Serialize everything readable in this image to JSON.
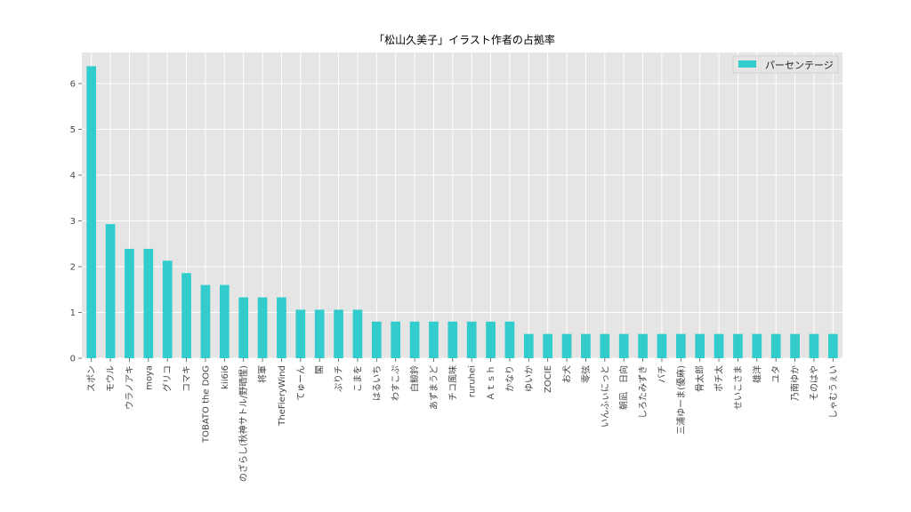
{
  "chart_data": {
    "type": "bar",
    "title": "「松山久美子」イラスト作者の占拠率",
    "xlabel": "",
    "ylabel": "",
    "ylim": [
      0,
      6.68
    ],
    "yticks": [
      0,
      1,
      2,
      3,
      4,
      5,
      6
    ],
    "grid": true,
    "legend_position": "top-right",
    "colors": {
      "bar": "#33cccc",
      "background": "#e5e5e5",
      "grid": "#ffffff"
    },
    "categories": [
      "スポン",
      "モウル",
      "ウラノアキ",
      "moya",
      "グリコ",
      "コマキ",
      "TOBATO the DOG",
      "kii6i6",
      "のざらし(秋神サトル/野晒惺)",
      "将軍",
      "TheFieryWind",
      "てゅーん",
      "閣",
      "ぷりチ",
      "こまを",
      "はるいち",
      "わすこぷ",
      "白鯨鈴",
      "あずまうど",
      "チコ風味",
      "ruruhei",
      "Ａｔｓｈ",
      "かなり",
      "ゆいか",
      "ZOCIE",
      "お犬",
      "零弦",
      "いんふぃにっと",
      "朝凪　日向",
      "しろたみずき",
      "バチ",
      "三浦ゆーま(優麻)",
      "骨太郎",
      "ポチ太",
      "せいこさま",
      "雄洋",
      "ユタ",
      "乃南ゆか",
      "そのはや",
      "しゃむうぇい"
    ],
    "series": [
      {
        "name": "パーセンテージ",
        "values": [
          6.38,
          2.93,
          2.39,
          2.39,
          2.13,
          1.86,
          1.6,
          1.6,
          1.33,
          1.33,
          1.33,
          1.06,
          1.06,
          1.06,
          1.06,
          0.8,
          0.8,
          0.8,
          0.8,
          0.8,
          0.8,
          0.8,
          0.8,
          0.53,
          0.53,
          0.53,
          0.53,
          0.53,
          0.53,
          0.53,
          0.53,
          0.53,
          0.53,
          0.53,
          0.53,
          0.53,
          0.53,
          0.53,
          0.53,
          0.53
        ]
      }
    ]
  }
}
